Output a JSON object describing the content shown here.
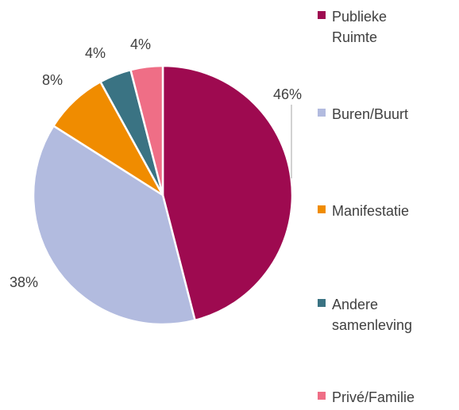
{
  "chart_data": {
    "type": "pie",
    "categories": [
      "Publieke Ruimte",
      "Buren/Buurt",
      "Manifestatie",
      "Andere samenleving",
      "Privé/Familie"
    ],
    "values": [
      46,
      38,
      8,
      4,
      4
    ],
    "value_labels": [
      "46%",
      "38%",
      "8%",
      "4%",
      "4%"
    ],
    "colors": [
      "#9e0a50",
      "#b2bbdf",
      "#f08c00",
      "#3a7383",
      "#ef6e86"
    ],
    "legend": "right"
  }
}
